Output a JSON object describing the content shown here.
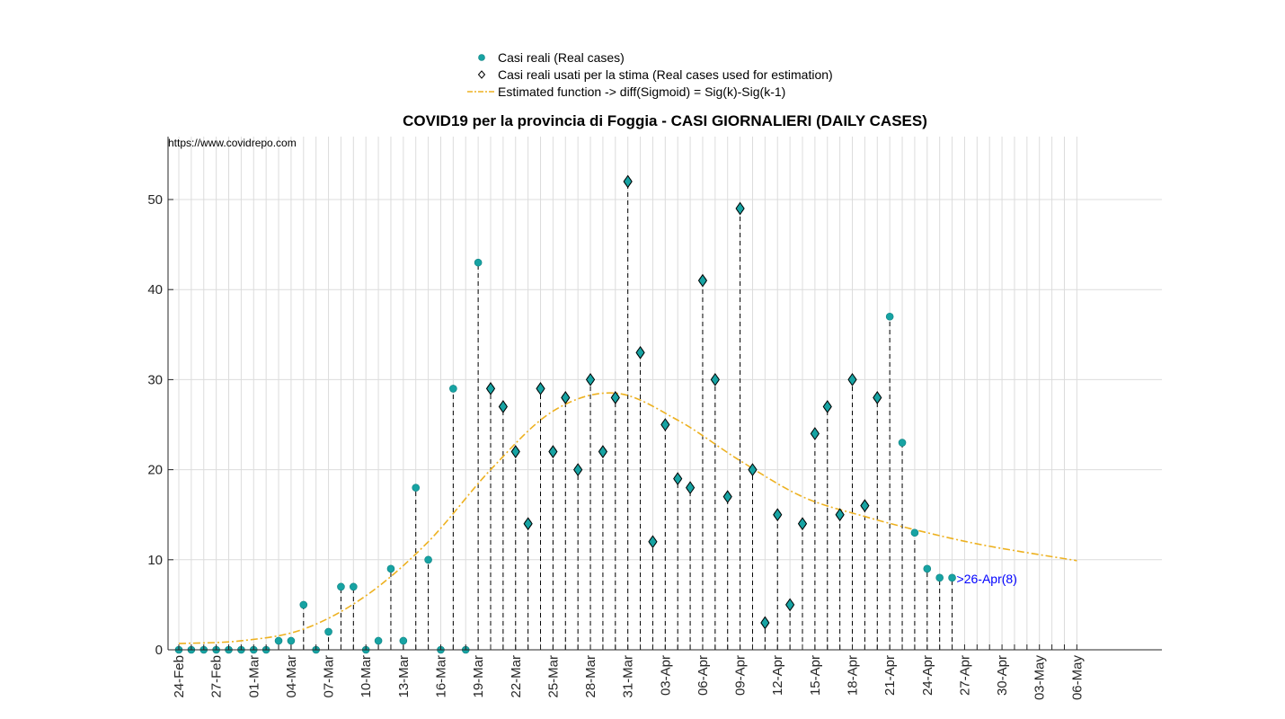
{
  "chart_data": {
    "type": "scatter",
    "title": "COVID19 per la provincia di Foggia - CASI GIORNALIERI (DAILY CASES)",
    "source_url": "https://www.covidrepo.com",
    "xlabel": "",
    "ylabel": "",
    "ylim": [
      0,
      57
    ],
    "yticks": [
      0,
      10,
      20,
      30,
      40,
      50
    ],
    "x_range": [
      "24-Feb",
      "06-May"
    ],
    "x_tick_labels": [
      "24-Feb",
      "27-Feb",
      "01-Mar",
      "04-Mar",
      "07-Mar",
      "10-Mar",
      "13-Mar",
      "16-Mar",
      "19-Mar",
      "22-Mar",
      "25-Mar",
      "28-Mar",
      "31-Mar",
      "03-Apr",
      "06-Apr",
      "09-Apr",
      "12-Apr",
      "15-Apr",
      "18-Apr",
      "21-Apr",
      "24-Apr",
      "27-Apr",
      "30-Apr",
      "03-May",
      "06-May"
    ],
    "grid": true,
    "legend_position": "top-center",
    "legend": [
      {
        "label": "Casi reali (Real cases)",
        "marker": "filled-circle",
        "color": "#17a3a3"
      },
      {
        "label": "Casi reali usati per la stima (Real cases used for estimation)",
        "marker": "diamond",
        "color": "#000000"
      },
      {
        "label": "Estimated function -> diff(Sigmoid) = Sig(k)-Sig(k-1)",
        "marker": "dash-dot-line",
        "color": "#EDB120"
      }
    ],
    "series": [
      {
        "name": "Casi reali (Real cases)",
        "x": [
          "24-Feb",
          "25-Feb",
          "26-Feb",
          "27-Feb",
          "28-Feb",
          "29-Feb",
          "01-Mar",
          "02-Mar",
          "03-Mar",
          "04-Mar",
          "05-Mar",
          "06-Mar",
          "07-Mar",
          "08-Mar",
          "09-Mar",
          "10-Mar",
          "11-Mar",
          "12-Mar",
          "13-Mar",
          "14-Mar",
          "15-Mar",
          "16-Mar",
          "17-Mar",
          "18-Mar",
          "19-Mar",
          "20-Mar",
          "21-Mar",
          "22-Mar",
          "23-Mar",
          "24-Mar",
          "25-Mar",
          "26-Mar",
          "27-Mar",
          "28-Mar",
          "29-Mar",
          "30-Mar",
          "31-Mar",
          "01-Apr",
          "02-Apr",
          "03-Apr",
          "04-Apr",
          "05-Apr",
          "06-Apr",
          "07-Apr",
          "08-Apr",
          "09-Apr",
          "10-Apr",
          "11-Apr",
          "12-Apr",
          "13-Apr",
          "14-Apr",
          "15-Apr",
          "16-Apr",
          "17-Apr",
          "18-Apr",
          "19-Apr",
          "20-Apr",
          "21-Apr",
          "22-Apr",
          "23-Apr",
          "24-Apr",
          "25-Apr",
          "26-Apr"
        ],
        "values": [
          0,
          0,
          0,
          0,
          0,
          0,
          0,
          0,
          1,
          1,
          5,
          0,
          2,
          7,
          7,
          0,
          1,
          9,
          1,
          18,
          10,
          0,
          29,
          0,
          43,
          29,
          27,
          22,
          14,
          29,
          22,
          28,
          20,
          30,
          22,
          28,
          52,
          33,
          12,
          25,
          19,
          18,
          41,
          30,
          17,
          49,
          20,
          3,
          15,
          5,
          14,
          24,
          27,
          15,
          30,
          16,
          28,
          37,
          23,
          13,
          9,
          8,
          8
        ],
        "color": "#17a3a3"
      },
      {
        "name": "Casi reali usati per la stima (Real cases used for estimation)",
        "x": [
          "20-Mar",
          "21-Mar",
          "22-Mar",
          "23-Mar",
          "24-Mar",
          "25-Mar",
          "26-Mar",
          "27-Mar",
          "28-Mar",
          "29-Mar",
          "30-Mar",
          "31-Mar",
          "01-Apr",
          "02-Apr",
          "03-Apr",
          "04-Apr",
          "05-Apr",
          "06-Apr",
          "07-Apr",
          "08-Apr",
          "09-Apr",
          "10-Apr",
          "11-Apr",
          "12-Apr",
          "13-Apr",
          "14-Apr",
          "15-Apr",
          "16-Apr",
          "17-Apr",
          "18-Apr",
          "19-Apr",
          "20-Apr"
        ],
        "values": [
          29,
          27,
          22,
          14,
          29,
          22,
          28,
          20,
          30,
          22,
          28,
          52,
          33,
          12,
          25,
          19,
          18,
          41,
          30,
          17,
          49,
          20,
          3,
          15,
          5,
          14,
          24,
          27,
          15,
          30,
          16,
          28
        ],
        "color": "#17a3a3"
      },
      {
        "name": "Estimated function -> diff(Sigmoid) = Sig(k)-Sig(k-1)",
        "x": [
          "24-Feb",
          "29-Feb",
          "05-Mar",
          "10-Mar",
          "15-Mar",
          "20-Mar",
          "25-Mar",
          "30-Mar",
          "04-Apr",
          "09-Apr",
          "14-Apr",
          "19-Apr",
          "24-Apr",
          "29-Apr",
          "06-May"
        ],
        "values": [
          0.7,
          1.0,
          2.3,
          6.0,
          12.0,
          20.0,
          26.5,
          28.5,
          25.5,
          21.0,
          17.0,
          14.8,
          13.0,
          11.5,
          9.9
        ],
        "color": "#EDB120"
      }
    ],
    "annotations": [
      {
        "text": ">26-Apr(8)",
        "x": "26-Apr",
        "y": 8,
        "color": "#0000ff"
      }
    ]
  }
}
